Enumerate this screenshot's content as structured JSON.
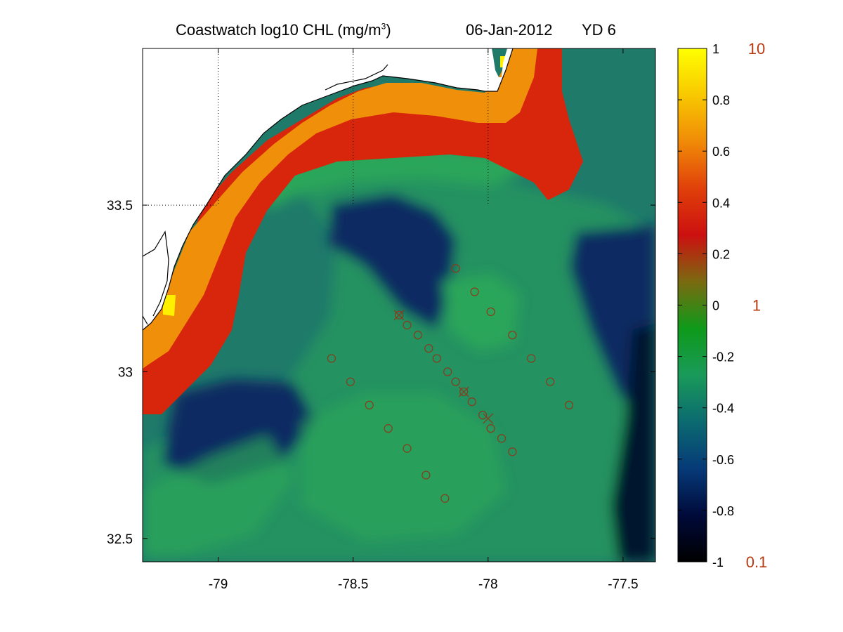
{
  "title": {
    "main_prefix": "Coastwatch  log10  CHL (mg/m",
    "main_sup": "3",
    "main_suffix": ")",
    "date": "06-Jan-2012",
    "yearday": "YD 6"
  },
  "axes": {
    "xticks": [
      {
        "value": -79,
        "label": "-79"
      },
      {
        "value": -78.5,
        "label": "-78.5"
      },
      {
        "value": -78,
        "label": "-78"
      },
      {
        "value": -77.5,
        "label": "-77.5"
      }
    ],
    "yticks": [
      {
        "value": 33.5,
        "label": "33.5"
      },
      {
        "value": 33,
        "label": "33"
      },
      {
        "value": 32.5,
        "label": "32.5"
      }
    ],
    "xlim": [
      -79.28,
      -77.38
    ],
    "ylim": [
      32.43,
      33.97
    ]
  },
  "colorbar": {
    "range": [
      -1,
      1
    ],
    "ticks": [
      {
        "value": 1,
        "label": "1"
      },
      {
        "value": 0.8,
        "label": "0.8"
      },
      {
        "value": 0.6,
        "label": "0.6"
      },
      {
        "value": 0.4,
        "label": "0.4"
      },
      {
        "value": 0.2,
        "label": "0.2"
      },
      {
        "value": 0,
        "label": "0"
      },
      {
        "value": -0.2,
        "label": "-0.2"
      },
      {
        "value": -0.4,
        "label": "-0.4"
      },
      {
        "value": -0.6,
        "label": "-0.6"
      },
      {
        "value": -0.8,
        "label": "-0.8"
      },
      {
        "value": -1,
        "label": "-1"
      }
    ],
    "linear_labels": [
      {
        "value": 1,
        "label": "10"
      },
      {
        "value": 0,
        "label": "1"
      },
      {
        "value": -1,
        "label": "0.1"
      }
    ],
    "colors": [
      "#000000",
      "#000a3a",
      "#063a78",
      "#0b6a70",
      "#1a9a5a",
      "#0e9a1a",
      "#7a6a10",
      "#cc1010",
      "#e0400a",
      "#f08a08",
      "#f8c800",
      "#ffff00"
    ]
  },
  "map_colors": {
    "land": "#ffffff",
    "coastline": "#000000",
    "deep_ocean": "#0a2a62",
    "mid_ocean": "#1f7a6a",
    "shelf_green": "#2aa65a",
    "front_red": "#d8260c",
    "front_orange": "#f0900a",
    "front_yellow": "#fff000",
    "station_marker": "#8b3a1a"
  },
  "chart_data": {
    "type": "scatter",
    "title": "Coastwatch  log10  CHL (mg/m3)   06-Jan-2012   YD 6",
    "xlabel": "",
    "ylabel": "",
    "xlim": [
      -79.28,
      -77.38
    ],
    "ylim": [
      32.43,
      33.97
    ],
    "grid": "dotted guides at -79, -78.5, -78 and 33.5 over land",
    "series": [
      {
        "marker": "circle",
        "points": [
          {
            "x": -78.12,
            "y": 33.31
          },
          {
            "x": -78.05,
            "y": 33.24
          },
          {
            "x": -77.99,
            "y": 33.18
          },
          {
            "x": -77.91,
            "y": 33.11
          },
          {
            "x": -77.84,
            "y": 33.04
          },
          {
            "x": -77.77,
            "y": 32.97
          },
          {
            "x": -77.7,
            "y": 32.9
          },
          {
            "x": -78.33,
            "y": 33.17
          },
          {
            "x": -78.3,
            "y": 33.14
          },
          {
            "x": -78.26,
            "y": 33.11
          },
          {
            "x": -78.22,
            "y": 33.07
          },
          {
            "x": -78.19,
            "y": 33.04
          },
          {
            "x": -78.15,
            "y": 33.0
          },
          {
            "x": -78.12,
            "y": 32.97
          },
          {
            "x": -78.09,
            "y": 32.94
          },
          {
            "x": -78.06,
            "y": 32.91
          },
          {
            "x": -78.02,
            "y": 32.87
          },
          {
            "x": -77.99,
            "y": 32.83
          },
          {
            "x": -77.95,
            "y": 32.8
          },
          {
            "x": -77.91,
            "y": 32.76
          },
          {
            "x": -78.58,
            "y": 33.04
          },
          {
            "x": -78.51,
            "y": 32.97
          },
          {
            "x": -78.44,
            "y": 32.9
          },
          {
            "x": -78.37,
            "y": 32.83
          },
          {
            "x": -78.3,
            "y": 32.77
          },
          {
            "x": -78.23,
            "y": 32.69
          },
          {
            "x": -78.16,
            "y": 32.62
          }
        ]
      },
      {
        "marker": "cross-circle",
        "points": [
          {
            "x": -78.33,
            "y": 33.17
          },
          {
            "x": -78.09,
            "y": 32.94
          },
          {
            "x": -78.0,
            "y": 32.86
          }
        ]
      }
    ]
  }
}
